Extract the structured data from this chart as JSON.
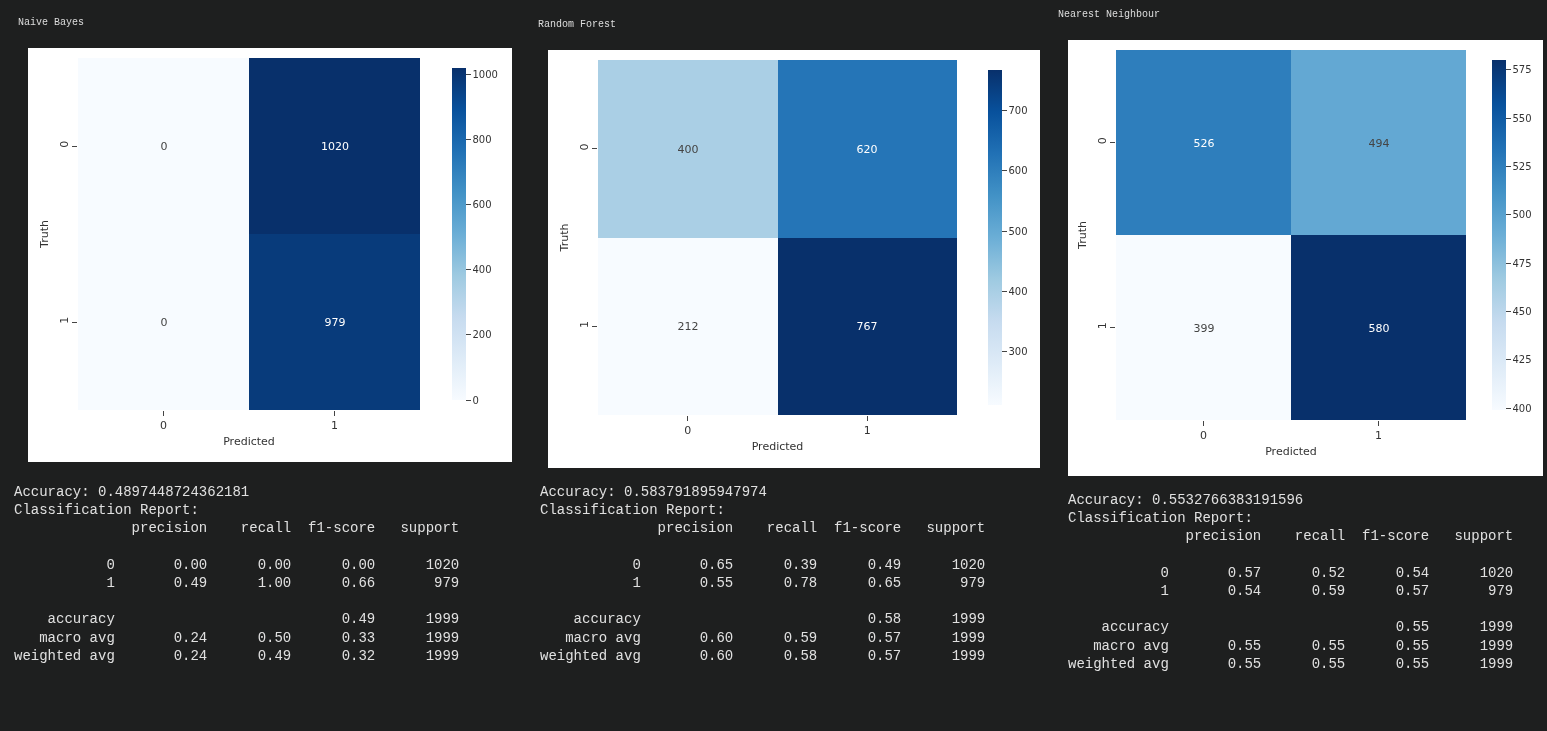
{
  "chart_data": [
    {
      "type": "heatmap",
      "title": "Naive Bayes",
      "xlabel": "Predicted",
      "ylabel": "Truth",
      "categories": [
        "0",
        "1"
      ],
      "y_categories": [
        "0",
        "1"
      ],
      "cells": [
        [
          0,
          1020
        ],
        [
          0,
          979
        ]
      ],
      "clim": [
        0,
        1020
      ],
      "cticks": [
        0,
        200,
        400,
        600,
        800,
        1000
      ],
      "data_labels": true,
      "annotations": [
        "Accuracy: 0.4897448724362181",
        "Classification Report:\n              precision    recall  f1-score   support\n\n           0       0.00      0.00      0.00      1020\n           1       0.49      1.00      0.66       979\n\n    accuracy                           0.49      1999\n   macro avg       0.24      0.50      0.33      1999\nweighted avg       0.24      0.49      0.32      1999"
      ]
    },
    {
      "type": "heatmap",
      "title": "Random Forest",
      "xlabel": "Predicted",
      "ylabel": "Truth",
      "categories": [
        "0",
        "1"
      ],
      "y_categories": [
        "0",
        "1"
      ],
      "cells": [
        [
          400,
          620
        ],
        [
          212,
          767
        ]
      ],
      "clim": [
        212,
        767
      ],
      "cticks": [
        300,
        400,
        500,
        600,
        700
      ],
      "data_labels": true,
      "annotations": [
        "Accuracy: 0.583791895947974",
        "Classification Report:\n              precision    recall  f1-score   support\n\n           0       0.65      0.39      0.49      1020\n           1       0.55      0.78      0.65       979\n\n    accuracy                           0.58      1999\n   macro avg       0.60      0.59      0.57      1999\nweighted avg       0.60      0.58      0.57      1999"
      ]
    },
    {
      "type": "heatmap",
      "title": "Nearest Neighbour",
      "xlabel": "Predicted",
      "ylabel": "Truth",
      "categories": [
        "0",
        "1"
      ],
      "y_categories": [
        "0",
        "1"
      ],
      "cells": [
        [
          526,
          494
        ],
        [
          399,
          580
        ]
      ],
      "clim": [
        399,
        580
      ],
      "cticks": [
        400,
        425,
        450,
        475,
        500,
        525,
        550,
        575
      ],
      "data_labels": true,
      "annotations": [
        "Accuracy: 0.5532766383191596",
        "Classification Report:\n              precision    recall  f1-score   support\n\n           0       0.57      0.52      0.54      1020\n           1       0.54      0.59      0.57       979\n\n    accuracy                           0.55      1999\n   macro avg       0.55      0.55      0.55      1999\nweighted avg       0.55      0.55      0.55      1999"
      ]
    }
  ]
}
